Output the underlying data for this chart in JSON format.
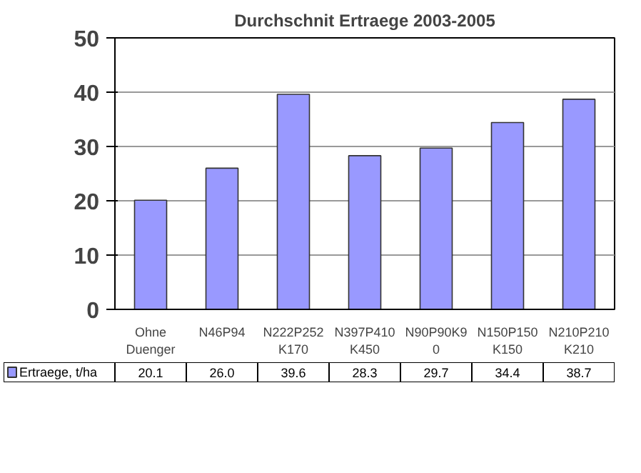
{
  "chart_data": {
    "type": "bar",
    "title": "Durchschnit Ertraege 2003-2005",
    "categories": [
      "Ohne Duenger",
      "N46P94",
      "N222P252K170",
      "N397P410K450",
      "N90P90K90",
      "N150P150K150",
      "N210P210K210"
    ],
    "series": [
      {
        "name": "Ertraege, t/ha",
        "color": "#9999ff",
        "values": [
          20.1,
          26.0,
          39.6,
          28.3,
          29.7,
          34.4,
          38.7
        ],
        "value_labels": [
          "20.1",
          "26.0",
          "39.6",
          "28.3",
          "29.7",
          "34.4",
          "38.7"
        ]
      }
    ],
    "ylim": [
      0,
      50
    ],
    "yticks": [
      0,
      10,
      20,
      30,
      40,
      50
    ],
    "grid": "y",
    "legend": "bottom"
  }
}
